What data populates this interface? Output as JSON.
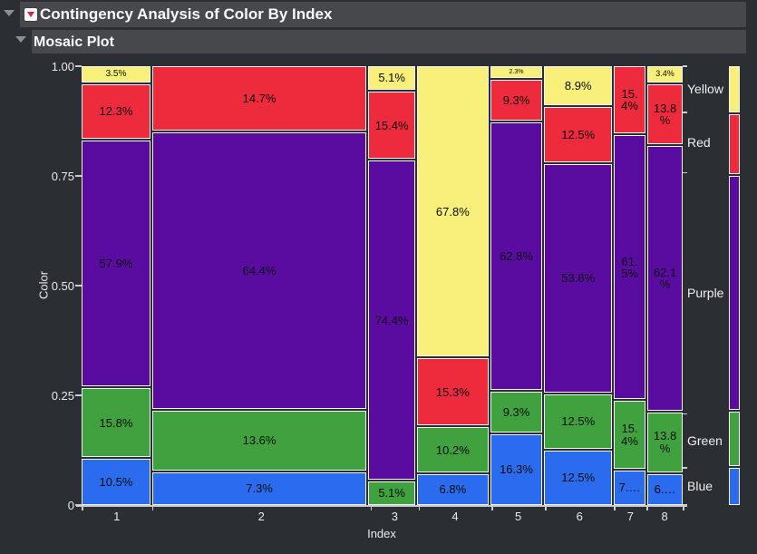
{
  "header": {
    "title": "Contingency Analysis of Color By Index",
    "subtitle": "Mosaic Plot"
  },
  "plot": {
    "y_axis": {
      "label": "Color",
      "ticks": [
        "1.00",
        "0.75",
        "0.50",
        "0.25",
        "0"
      ]
    },
    "x_axis": {
      "label": "Index"
    },
    "right_axis": {
      "labels": [
        "Yellow",
        "Red",
        "Purple",
        "Green",
        "Blue"
      ]
    }
  },
  "mosaic": {
    "colors": {
      "Yellow": "#F8F07B",
      "Red": "#EE2B3C",
      "Purple": "#5A0CA0",
      "Green": "#3FA23F",
      "Blue": "#2B6CEE"
    },
    "columns": [
      {
        "x": "1",
        "share": 11.7,
        "segments": [
          {
            "color": "Yellow",
            "pct": 3.5,
            "label": "3.5%",
            "fs": 10
          },
          {
            "color": "Red",
            "pct": 12.3,
            "label": "12.3%"
          },
          {
            "color": "Purple",
            "pct": 57.9,
            "label": "57.9%"
          },
          {
            "color": "Green",
            "pct": 15.8,
            "label": "15.8%"
          },
          {
            "color": "Blue",
            "pct": 10.5,
            "label": "10.5%"
          }
        ]
      },
      {
        "x": "2",
        "share": 36.4,
        "segments": [
          {
            "color": "Red",
            "pct": 14.7,
            "label": "14.7%"
          },
          {
            "color": "Purple",
            "pct": 64.4,
            "label": "64.4%"
          },
          {
            "color": "Green",
            "pct": 13.6,
            "label": "13.6%"
          },
          {
            "color": "Blue",
            "pct": 7.3,
            "label": "7.3%"
          }
        ]
      },
      {
        "x": "3",
        "share": 8.0,
        "segments": [
          {
            "color": "Yellow",
            "pct": 5.1,
            "label": "5.1%"
          },
          {
            "color": "Red",
            "pct": 15.4,
            "label": "15.4%"
          },
          {
            "color": "Purple",
            "pct": 74.4,
            "label": "74.4%"
          },
          {
            "color": "Green",
            "pct": 5.1,
            "label": "5.1%"
          }
        ]
      },
      {
        "x": "4",
        "share": 12.1,
        "segments": [
          {
            "color": "Yellow",
            "pct": 67.8,
            "label": "67.8%"
          },
          {
            "color": "Red",
            "pct": 15.3,
            "label": "15.3%"
          },
          {
            "color": "Green",
            "pct": 10.2,
            "label": "10.2%"
          },
          {
            "color": "Blue",
            "pct": 6.8,
            "label": "6.8%"
          }
        ]
      },
      {
        "x": "5",
        "share": 8.9,
        "segments": [
          {
            "color": "Yellow",
            "pct": 2.3,
            "label": "2.3%",
            "fs": 7
          },
          {
            "color": "Red",
            "pct": 9.3,
            "label": "9.3%"
          },
          {
            "color": "Purple",
            "pct": 62.8,
            "label": "62.8%"
          },
          {
            "color": "Green",
            "pct": 9.3,
            "label": "9.3%"
          },
          {
            "color": "Blue",
            "pct": 16.3,
            "label": "16.3%"
          }
        ]
      },
      {
        "x": "6",
        "share": 11.5,
        "segments": [
          {
            "color": "Yellow",
            "pct": 8.9,
            "label": "8.9%"
          },
          {
            "color": "Red",
            "pct": 12.5,
            "label": "12.5%"
          },
          {
            "color": "Purple",
            "pct": 53.6,
            "label": "53.6%"
          },
          {
            "color": "Green",
            "pct": 12.5,
            "label": "12.5%"
          },
          {
            "color": "Blue",
            "pct": 12.5,
            "label": "12.5%"
          }
        ]
      },
      {
        "x": "7",
        "share": 5.4,
        "segments": [
          {
            "color": "Red",
            "pct": 15.4,
            "label": "15.\n4%"
          },
          {
            "color": "Purple",
            "pct": 61.5,
            "label": "61.\n5%"
          },
          {
            "color": "Green",
            "pct": 15.4,
            "label": "15.\n4%"
          },
          {
            "color": "Blue",
            "pct": 7.7,
            "label": "7.…"
          }
        ]
      },
      {
        "x": "8",
        "share": 6.0,
        "segments": [
          {
            "color": "Yellow",
            "pct": 3.4,
            "label": "3.4%",
            "fs": 9
          },
          {
            "color": "Red",
            "pct": 13.8,
            "label": "13.8\n%"
          },
          {
            "color": "Purple",
            "pct": 62.1,
            "label": "62.1\n%"
          },
          {
            "color": "Green",
            "pct": 13.8,
            "label": "13.8\n%"
          },
          {
            "color": "Blue",
            "pct": 6.9,
            "label": "6.…"
          }
        ]
      }
    ]
  },
  "legend": {
    "segments": [
      {
        "name": "Yellow",
        "pct": 10.5
      },
      {
        "name": "Red",
        "pct": 13.8
      },
      {
        "name": "Purple",
        "pct": 54.9
      },
      {
        "name": "Green",
        "pct": 12.3
      },
      {
        "name": "Blue",
        "pct": 8.4
      }
    ]
  },
  "chart_data": {
    "type": "mosaic",
    "title": "Contingency Analysis of Color By Index",
    "xlabel": "Index",
    "ylabel": "Color",
    "x_categories": [
      "1",
      "2",
      "3",
      "4",
      "5",
      "6",
      "7",
      "8"
    ],
    "y_categories_top_to_bottom": [
      "Yellow",
      "Red",
      "Purple",
      "Green",
      "Blue"
    ],
    "column_width_share_pct": [
      11.7,
      36.4,
      8.0,
      12.1,
      8.9,
      11.5,
      5.4,
      6.0
    ],
    "series": [
      {
        "name": "Yellow",
        "values_pct": [
          3.5,
          0,
          5.1,
          67.8,
          2.3,
          8.9,
          0,
          3.4
        ]
      },
      {
        "name": "Red",
        "values_pct": [
          12.3,
          14.7,
          15.4,
          15.3,
          9.3,
          12.5,
          15.4,
          13.8
        ]
      },
      {
        "name": "Purple",
        "values_pct": [
          57.9,
          64.4,
          74.4,
          0,
          62.8,
          53.6,
          61.5,
          62.1
        ]
      },
      {
        "name": "Green",
        "values_pct": [
          15.8,
          13.6,
          5.1,
          10.2,
          9.3,
          12.5,
          15.4,
          13.8
        ]
      },
      {
        "name": "Blue",
        "values_pct": [
          10.5,
          7.3,
          0,
          6.8,
          16.3,
          12.5,
          7.7,
          6.9
        ]
      }
    ],
    "overall_totals_pct": {
      "Yellow": 10.5,
      "Red": 13.8,
      "Purple": 54.9,
      "Green": 12.3,
      "Blue": 8.4
    },
    "y_ticks": [
      "1.00",
      "0.75",
      "0.50",
      "0.25",
      "0"
    ],
    "ylim": [
      0,
      1
    ],
    "grid": false,
    "legend_position": "right-strip"
  }
}
